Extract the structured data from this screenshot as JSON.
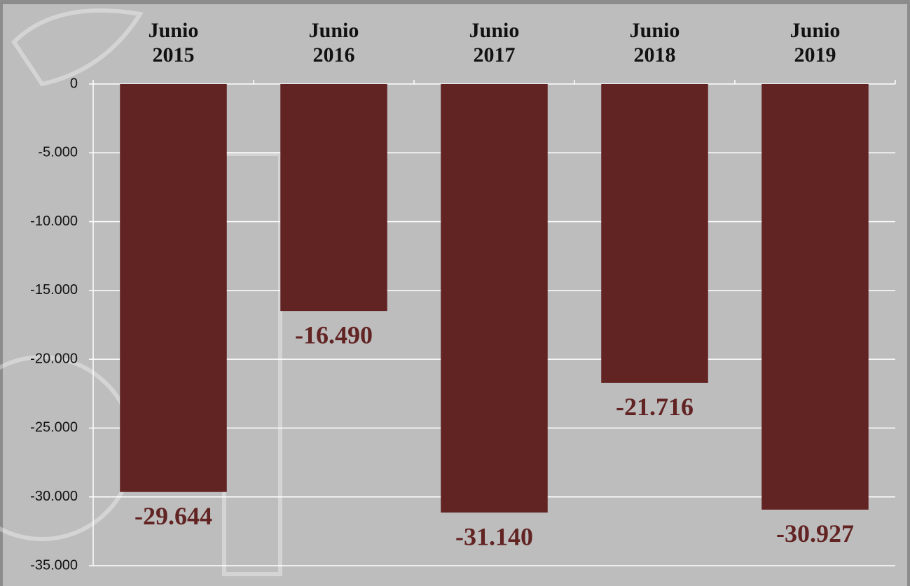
{
  "chart_data": {
    "type": "bar",
    "categories": [
      "Junio 2015",
      "Junio 2016",
      "Junio 2017",
      "Junio 2018",
      "Junio 2019"
    ],
    "values": [
      -29644,
      -16490,
      -31140,
      -21716,
      -30927
    ],
    "value_labels": [
      "-29.644",
      "-16.490",
      "-31.140",
      "-21.716",
      "-30.927"
    ],
    "color": "#622323",
    "ylim": [
      -35000,
      0
    ],
    "yticks": [
      0,
      {
        "value": -5000,
        "label": "-5.000"
      },
      {
        "value": -10000,
        "label": "-10.000"
      },
      {
        "value": -15000,
        "label": "-15.000"
      },
      {
        "value": -20000,
        "label": "-20.000"
      },
      {
        "value": -25000,
        "label": "-25.000"
      },
      {
        "value": -30000,
        "label": "-30.000"
      },
      {
        "value": -35000,
        "label": "-35.000"
      }
    ],
    "grid": true
  }
}
